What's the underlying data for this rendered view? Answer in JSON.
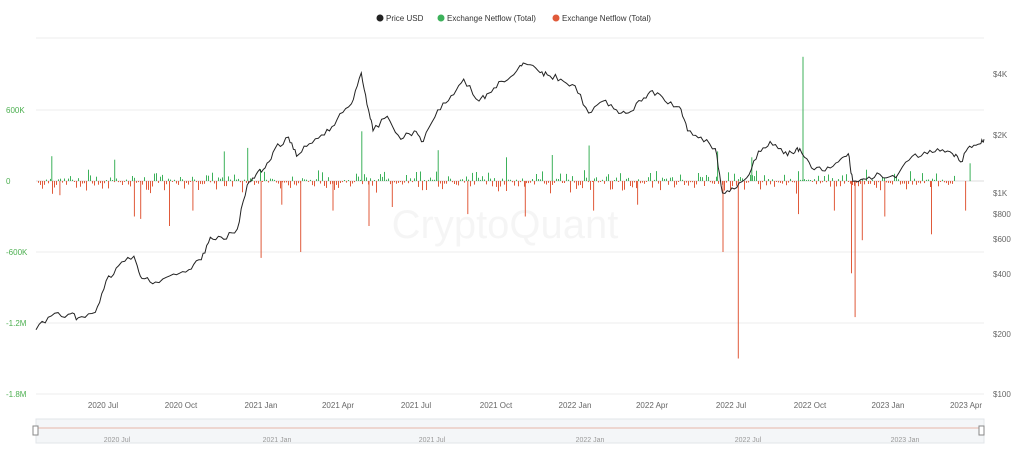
{
  "colors": {
    "price": "#222222",
    "inflow_positive": "#3cb15a",
    "outflow_negative": "#e05a3a",
    "left_axis_text": "#4caf50",
    "grid": "#ececec"
  },
  "watermark": "CryptoQuant",
  "chart_data": {
    "type": "bar",
    "legend": {
      "placement": "top-center",
      "items": [
        {
          "label": "Price USD",
          "color": "#222222"
        },
        {
          "label": "Exchange Netflow (Total)",
          "color": "#3cb15a"
        },
        {
          "label": "Exchange Netflow (Total)",
          "color": "#e05a3a"
        }
      ]
    },
    "x_ticks": [
      "2020 Jul",
      "2020 Oct",
      "2021 Jan",
      "2021 Apr",
      "2021 Jul",
      "2021 Oct",
      "2022 Jan",
      "2022 Apr",
      "2022 Jul",
      "2022 Oct",
      "2023 Jan",
      "2023 Apr"
    ],
    "x_range": [
      "2020-05-15",
      "2023-04-05"
    ],
    "y_left": {
      "ticks": [
        "600K",
        "0",
        "-600K",
        "-1.2M",
        "-1.8M"
      ],
      "range": [
        1200000,
        -1800000
      ]
    },
    "y_right": {
      "scale": "log",
      "ticks": [
        "$4K",
        "$2K",
        "$1K",
        "$800",
        "$600",
        "$400",
        "$200",
        "$100"
      ],
      "range": [
        100,
        5500
      ]
    },
    "grid": true,
    "series": [
      {
        "name": "Price USD",
        "type": "line",
        "axis": "right",
        "points": [
          [
            "2020-05-15",
            195
          ],
          [
            "2020-06-01",
            230
          ],
          [
            "2020-06-20",
            235
          ],
          [
            "2020-07-01",
            225
          ],
          [
            "2020-07-20",
            240
          ],
          [
            "2020-08-01",
            350
          ],
          [
            "2020-08-15",
            420
          ],
          [
            "2020-09-01",
            470
          ],
          [
            "2020-09-10",
            360
          ],
          [
            "2020-09-25",
            345
          ],
          [
            "2020-10-15",
            380
          ],
          [
            "2020-11-01",
            400
          ],
          [
            "2020-11-15",
            450
          ],
          [
            "2020-11-25",
            590
          ],
          [
            "2020-12-10",
            575
          ],
          [
            "2020-12-25",
            650
          ],
          [
            "2021-01-05",
            1100
          ],
          [
            "2021-01-15",
            1250
          ],
          [
            "2021-01-25",
            1350
          ],
          [
            "2021-02-05",
            1700
          ],
          [
            "2021-02-20",
            1950
          ],
          [
            "2021-03-01",
            1550
          ],
          [
            "2021-03-15",
            1800
          ],
          [
            "2021-04-01",
            2000
          ],
          [
            "2021-04-15",
            2400
          ],
          [
            "2021-05-01",
            2900
          ],
          [
            "2021-05-12",
            4200
          ],
          [
            "2021-05-20",
            2700
          ],
          [
            "2021-05-25",
            2100
          ],
          [
            "2021-06-10",
            2500
          ],
          [
            "2021-06-25",
            1900
          ],
          [
            "2021-07-10",
            2100
          ],
          [
            "2021-07-20",
            1850
          ],
          [
            "2021-08-05",
            2700
          ],
          [
            "2021-08-20",
            3200
          ],
          [
            "2021-09-03",
            3900
          ],
          [
            "2021-09-20",
            3000
          ],
          [
            "2021-10-01",
            3300
          ],
          [
            "2021-10-15",
            3800
          ],
          [
            "2021-11-01",
            4300
          ],
          [
            "2021-11-10",
            4700
          ],
          [
            "2021-11-25",
            4300
          ],
          [
            "2021-12-05",
            4100
          ],
          [
            "2021-12-20",
            3900
          ],
          [
            "2022-01-05",
            3600
          ],
          [
            "2022-01-20",
            2600
          ],
          [
            "2022-02-05",
            3000
          ],
          [
            "2022-02-20",
            2700
          ],
          [
            "2022-03-05",
            2600
          ],
          [
            "2022-03-20",
            3000
          ],
          [
            "2022-04-01",
            3400
          ],
          [
            "2022-04-15",
            3000
          ],
          [
            "2022-05-01",
            2800
          ],
          [
            "2022-05-10",
            2100
          ],
          [
            "2022-05-25",
            1950
          ],
          [
            "2022-06-10",
            1700
          ],
          [
            "2022-06-18",
            1000
          ],
          [
            "2022-07-01",
            1050
          ],
          [
            "2022-07-15",
            1200
          ],
          [
            "2022-07-28",
            1650
          ],
          [
            "2022-08-10",
            1850
          ],
          [
            "2022-08-25",
            1600
          ],
          [
            "2022-09-05",
            1600
          ],
          [
            "2022-09-12",
            1700
          ],
          [
            "2022-09-25",
            1350
          ],
          [
            "2022-10-10",
            1300
          ],
          [
            "2022-10-25",
            1450
          ],
          [
            "2022-11-05",
            1600
          ],
          [
            "2022-11-10",
            1150
          ],
          [
            "2022-11-25",
            1180
          ],
          [
            "2022-12-10",
            1250
          ],
          [
            "2022-12-28",
            1200
          ],
          [
            "2023-01-15",
            1550
          ],
          [
            "2023-02-01",
            1600
          ],
          [
            "2023-02-15",
            1650
          ],
          [
            "2023-03-01",
            1600
          ],
          [
            "2023-03-10",
            1450
          ],
          [
            "2023-03-20",
            1750
          ],
          [
            "2023-04-01",
            1800
          ],
          [
            "2023-04-05",
            1900
          ]
        ]
      }
    ],
    "netflow_spikes": [
      [
        "2020-06-01",
        210000
      ],
      [
        "2020-06-10",
        -120000
      ],
      [
        "2020-08-10",
        180000
      ],
      [
        "2020-09-01",
        -300000
      ],
      [
        "2020-09-08",
        -320000
      ],
      [
        "2020-10-10",
        -380000
      ],
      [
        "2020-11-05",
        -250000
      ],
      [
        "2020-12-10",
        250000
      ],
      [
        "2021-01-20",
        -650000
      ],
      [
        "2021-01-05",
        280000
      ],
      [
        "2021-02-12",
        -200000
      ],
      [
        "2021-03-05",
        -600000
      ],
      [
        "2021-04-10",
        -250000
      ],
      [
        "2021-05-12",
        420000
      ],
      [
        "2021-05-20",
        -380000
      ],
      [
        "2021-06-15",
        -220000
      ],
      [
        "2021-08-05",
        260000
      ],
      [
        "2021-09-07",
        -280000
      ],
      [
        "2021-10-20",
        200000
      ],
      [
        "2021-11-10",
        -300000
      ],
      [
        "2021-12-10",
        220000
      ],
      [
        "2022-01-20",
        300000
      ],
      [
        "2022-01-25",
        -250000
      ],
      [
        "2022-03-15",
        -200000
      ],
      [
        "2022-06-12",
        250000
      ],
      [
        "2022-06-18",
        -600000
      ],
      [
        "2022-07-05",
        -1500000
      ],
      [
        "2022-07-20",
        200000
      ],
      [
        "2022-09-15",
        1050000
      ],
      [
        "2022-09-10",
        -280000
      ],
      [
        "2022-10-20",
        -250000
      ],
      [
        "2022-11-08",
        -780000
      ],
      [
        "2022-11-12",
        -1150000
      ],
      [
        "2022-11-20",
        -500000
      ],
      [
        "2022-12-15",
        -300000
      ],
      [
        "2023-02-05",
        -450000
      ],
      [
        "2023-03-15",
        -250000
      ],
      [
        "2023-03-20",
        150000
      ]
    ]
  }
}
